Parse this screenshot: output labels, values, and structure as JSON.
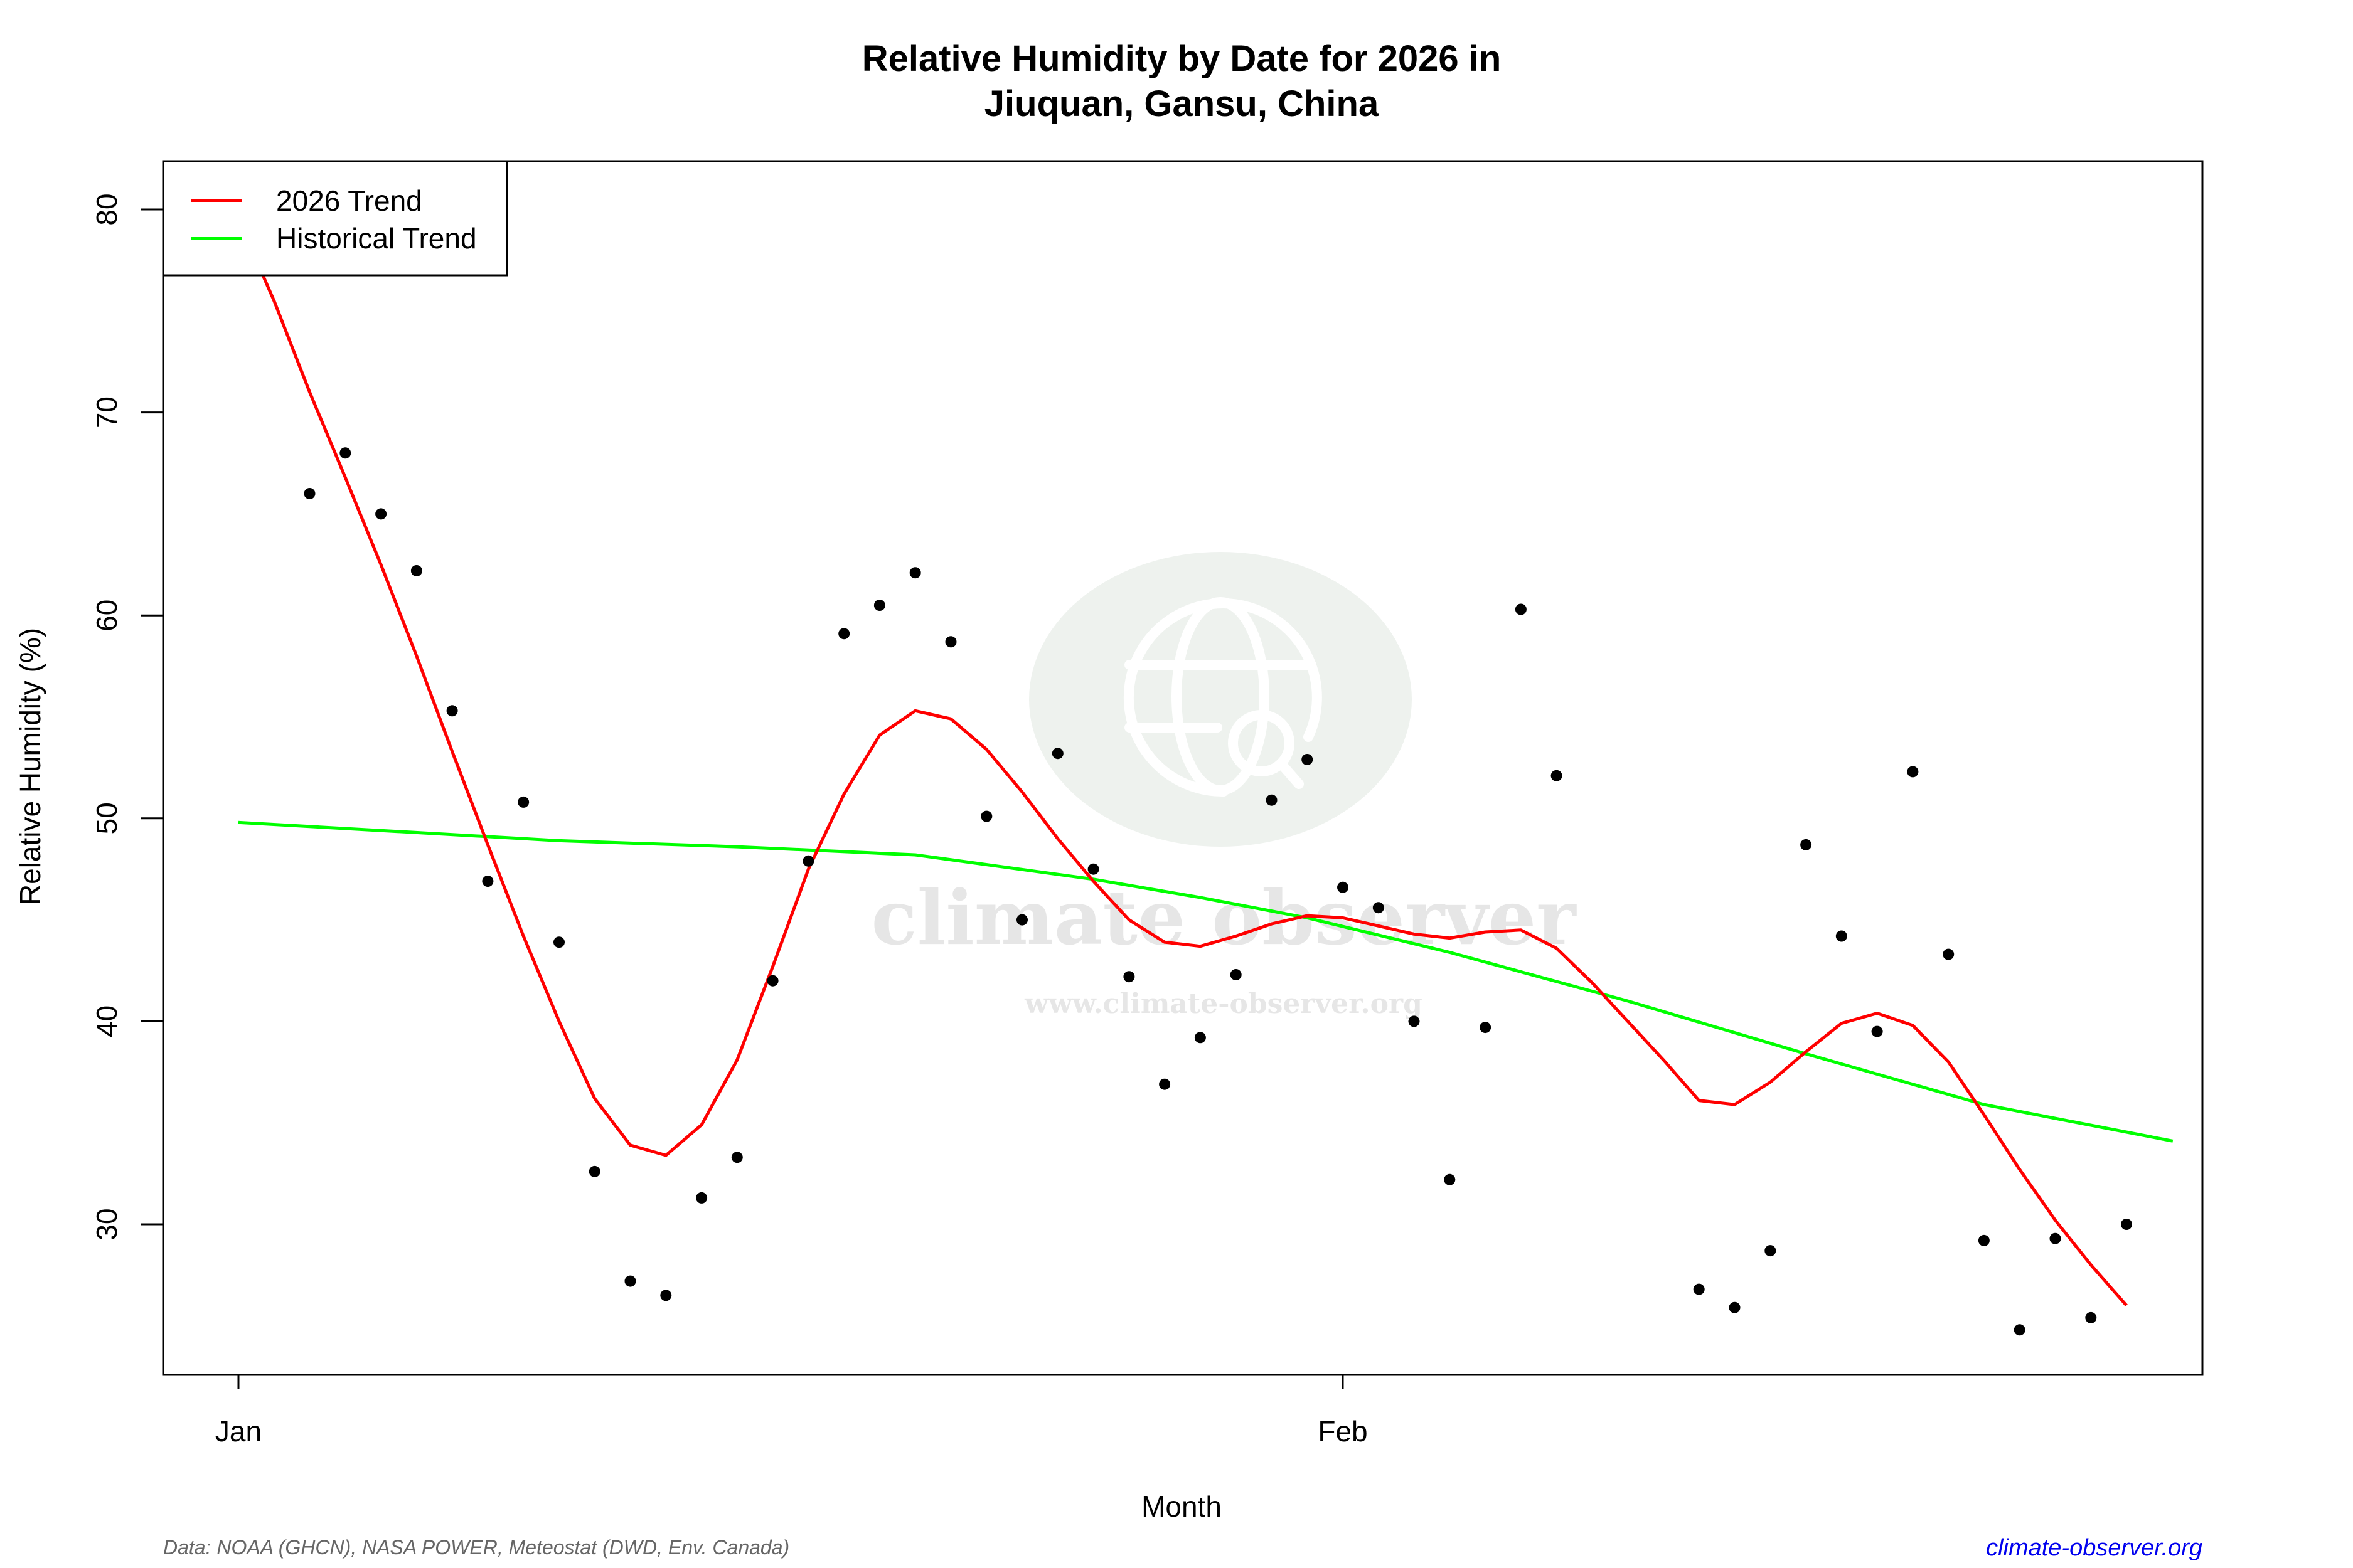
{
  "title_line1": "Relative Humidity by Date for 2026 in",
  "title_line2": "Jiuquan, Gansu, China",
  "xlabel": "Month",
  "ylabel": "Relative Humidity (%)",
  "legend": {
    "items": [
      {
        "label": "2026 Trend",
        "color": "#ff0000"
      },
      {
        "label": "Historical Trend",
        "color": "#00ff00"
      }
    ]
  },
  "footer": {
    "source": "Data: NOAA (GHCN), NASA POWER, Meteostat (DWD, Env. Canada)",
    "site": "climate-observer.org"
  },
  "watermark": {
    "name": "climate observer",
    "url": "www.climate-observer.org"
  },
  "colors": {
    "points": "#000000",
    "trend_2026": "#ff0000",
    "historical": "#00ff00",
    "site_link": "#0000ee"
  },
  "chart_data": {
    "type": "scatter",
    "title": "Relative Humidity by Date for 2026 in Jiuquan, Gansu, China",
    "xlabel": "Month",
    "ylabel": "Relative Humidity (%)",
    "x_ticks": [
      {
        "label": "Jan",
        "day": 1
      },
      {
        "label": "Feb",
        "day": 32
      }
    ],
    "y_ticks": [
      30,
      40,
      50,
      60,
      70,
      80
    ],
    "xlim": [
      -3.1,
      54
    ],
    "ylim": [
      22.6,
      82.3
    ],
    "grid": false,
    "legend_position": "top-left",
    "points": {
      "day": [
        3,
        4,
        5,
        6,
        7,
        8,
        9,
        10,
        11,
        12,
        13,
        14,
        15,
        16,
        17,
        18,
        19,
        20,
        21,
        22,
        23,
        24,
        25,
        26,
        27,
        28,
        29,
        30,
        31,
        32,
        33,
        34,
        35,
        36,
        37,
        38,
        42,
        43,
        44,
        45,
        46,
        47,
        48,
        49,
        50,
        51,
        52,
        53,
        54
      ],
      "value": [
        66.0,
        68.0,
        65.0,
        62.2,
        55.3,
        46.9,
        50.8,
        43.9,
        32.6,
        27.2,
        26.5,
        31.3,
        33.3,
        42.0,
        47.9,
        59.1,
        60.5,
        62.1,
        58.7,
        50.1,
        45.0,
        53.2,
        47.5,
        42.2,
        36.9,
        39.2,
        42.3,
        50.9,
        52.9,
        46.6,
        45.6,
        40.0,
        32.2,
        39.7,
        60.3,
        52.1,
        26.8,
        25.9,
        28.7,
        48.7,
        44.2,
        39.5,
        52.3,
        43.3,
        29.2,
        24.8,
        29.3,
        25.4,
        30.0
      ]
    },
    "series": [
      {
        "name": "2026 Trend",
        "color": "#ff0000",
        "day": [
          1,
          2,
          3,
          4,
          5,
          6,
          7,
          8,
          9,
          10,
          11,
          12,
          13,
          14,
          15,
          16,
          17,
          18,
          19,
          20,
          21,
          22,
          23,
          24,
          25,
          26,
          27,
          28,
          29,
          30,
          31,
          32,
          33,
          34,
          35,
          36,
          37,
          38,
          39,
          40,
          41,
          42,
          43,
          44,
          45,
          46,
          47,
          48,
          49,
          50,
          51,
          52,
          53,
          54
        ],
        "values": [
          79.5,
          75.5,
          71.0,
          66.8,
          62.5,
          58.0,
          53.3,
          48.7,
          44.2,
          40.0,
          36.2,
          33.9,
          33.4,
          34.9,
          38.1,
          42.7,
          47.5,
          51.2,
          54.1,
          55.3,
          54.9,
          53.4,
          51.3,
          49.0,
          46.9,
          45.0,
          43.9,
          43.7,
          44.2,
          44.8,
          45.2,
          45.1,
          44.7,
          44.3,
          44.1,
          44.4,
          44.5,
          43.6,
          41.9,
          40.0,
          38.1,
          36.1,
          35.9,
          37.0,
          38.5,
          39.9,
          40.4,
          39.8,
          38.0,
          35.4,
          32.7,
          30.2,
          28.0,
          26.0
        ]
      },
      {
        "name": "Historical Trend",
        "color": "#00ff00",
        "day": [
          1,
          5,
          10,
          15,
          20,
          25,
          28,
          31,
          35,
          40,
          45,
          50,
          55.3
        ],
        "values": [
          49.8,
          49.4,
          48.9,
          48.6,
          48.2,
          47.0,
          46.1,
          45.1,
          43.4,
          41.0,
          38.4,
          35.9,
          34.1
        ]
      }
    ]
  }
}
